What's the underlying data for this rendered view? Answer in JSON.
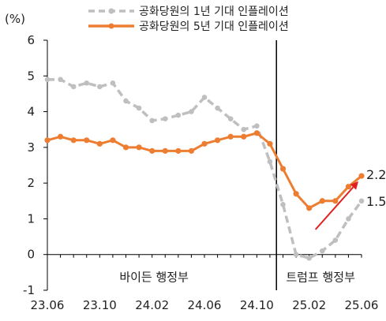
{
  "chart_data": {
    "type": "line",
    "unit_label": "(%)",
    "ylim": [
      -1,
      6
    ],
    "y_ticks": [
      "-1",
      "0",
      "1",
      "2",
      "3",
      "4",
      "5",
      "6"
    ],
    "x_tick_labels": [
      "23.06",
      "23.10",
      "24.02",
      "24.06",
      "24.10",
      "25.02",
      "25.06"
    ],
    "period_labels": [
      "바이든 행정부",
      "트럼프 행정부"
    ],
    "x": [
      "23.06",
      "23.07",
      "23.08",
      "23.09",
      "23.10",
      "23.11",
      "23.12",
      "24.01",
      "24.02",
      "24.03",
      "24.04",
      "24.05",
      "24.06",
      "24.07",
      "24.08",
      "24.09",
      "24.10",
      "24.11",
      "24.12",
      "25.01",
      "25.02",
      "25.03",
      "25.04",
      "25.05",
      "25.06"
    ],
    "series": [
      {
        "name": "공화당원의 1년 기대 인플레이션",
        "color": "#bfbfbf",
        "style": "dashed",
        "values": [
          4.9,
          4.9,
          4.7,
          4.8,
          4.7,
          4.8,
          4.3,
          4.1,
          3.75,
          3.8,
          3.9,
          4.0,
          4.4,
          4.1,
          3.8,
          3.5,
          3.6,
          2.6,
          1.4,
          0.0,
          -0.1,
          0.1,
          0.4,
          1.0,
          1.5
        ]
      },
      {
        "name": "공화당원의 5년 기대 인플레이션",
        "color": "#ed7d31",
        "style": "solid",
        "values": [
          3.2,
          3.3,
          3.2,
          3.2,
          3.1,
          3.2,
          3.0,
          3.0,
          2.9,
          2.9,
          2.9,
          2.9,
          3.1,
          3.2,
          3.3,
          3.3,
          3.4,
          3.1,
          2.4,
          1.7,
          1.3,
          1.5,
          1.5,
          1.9,
          2.2
        ]
      }
    ],
    "end_labels": [
      "2.2",
      "1.5"
    ],
    "arrow_color": "#e0201f",
    "divider_after": "24.11",
    "grid": false,
    "legend_position": "top"
  }
}
